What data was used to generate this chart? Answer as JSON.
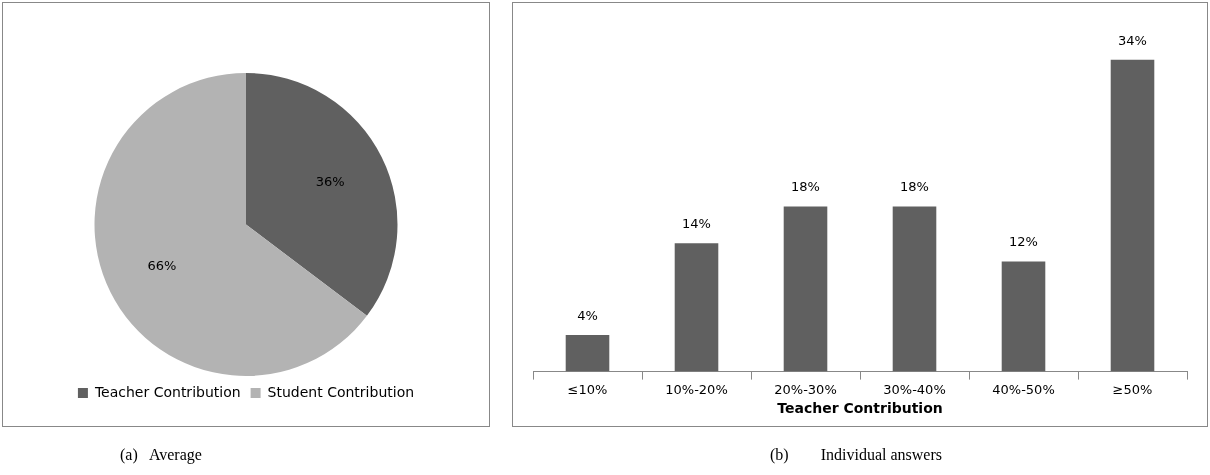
{
  "chart_data": [
    {
      "type": "pie",
      "categories": [
        "Teacher Contribution",
        "Student Contribution"
      ],
      "values": [
        36,
        66
      ],
      "colors": [
        "#606060",
        "#b3b3b3"
      ],
      "value_labels": [
        "36%",
        "66%"
      ],
      "legend": "bottom",
      "annotations": [
        "(a)   Average"
      ]
    },
    {
      "type": "bar",
      "categories": [
        "≤10%",
        "10%-20%",
        "20%-30%",
        "30%-40%",
        "40%-50%",
        "≥50%"
      ],
      "values": [
        4,
        14,
        18,
        18,
        12,
        34
      ],
      "color": "#606060",
      "value_labels": [
        "4%",
        "14%",
        "18%",
        "18%",
        "12%",
        "34%"
      ],
      "xlabel": "Teacher Contribution",
      "legend": false,
      "annotations": [
        "(b)        Individual answers"
      ]
    }
  ]
}
